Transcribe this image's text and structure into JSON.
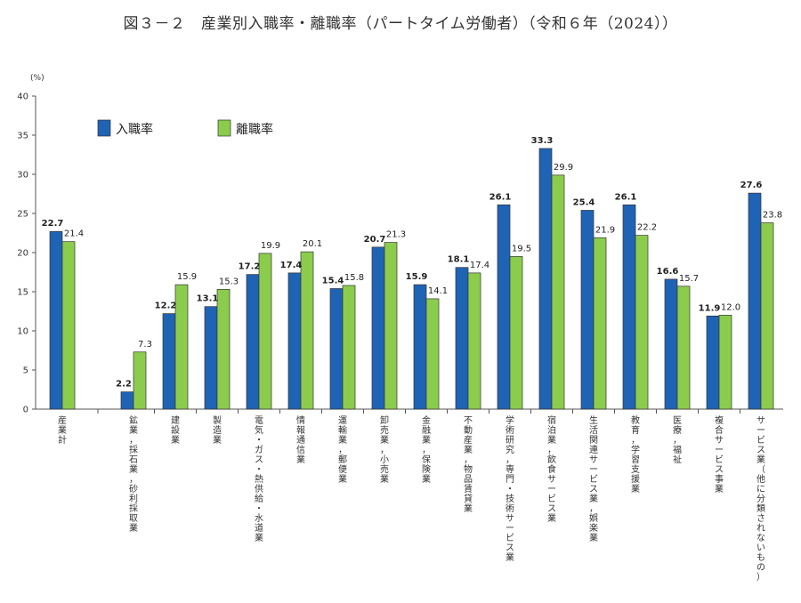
{
  "chart_data": {
    "type": "bar",
    "title": "図３－２　産業別入職率・離職率（パートタイム労働者）（令和６年（2024））",
    "ylabel": "(%)",
    "ylim": [
      0,
      40
    ],
    "yticks": [
      0,
      5,
      10,
      15,
      20,
      25,
      30,
      35,
      40
    ],
    "colors": {
      "entry": "#1f63b5",
      "exit": "#8ccc4d"
    },
    "categories": [
      "産業計",
      "鉱業，採石業，砂利採取業",
      "建設業",
      "製造業",
      "電気・ガス・熱供給・水道業",
      "情報通信業",
      "運輸業，郵便業",
      "卸売業，小売業",
      "金融業，保険業",
      "不動産業，物品賃貸業",
      "学術研究，専門・技術サービス業",
      "宿泊業，飲食サービス業",
      "生活関連サービス業，娯楽業",
      "教育，学習支援業",
      "医療，福祉",
      "複合サービス事業",
      "サービス業（他に分類されないもの）"
    ],
    "series": [
      {
        "name": "入職率",
        "values": [
          22.7,
          2.2,
          12.2,
          13.1,
          17.2,
          17.4,
          15.4,
          20.7,
          15.9,
          18.1,
          26.1,
          33.3,
          25.4,
          26.1,
          16.6,
          11.9,
          27.6
        ],
        "labels": [
          "22.7",
          "2.2",
          "12.2",
          "13.1",
          "17.2",
          "17.4",
          "15.4",
          "20.7",
          "15.9",
          "18.1",
          "26.1",
          "33.3",
          "25.4",
          "26.1",
          "16.6",
          "11.9",
          "27.6"
        ]
      },
      {
        "name": "離職率",
        "values": [
          21.4,
          7.3,
          15.9,
          15.3,
          19.9,
          20.1,
          15.8,
          21.3,
          14.1,
          17.4,
          19.5,
          29.9,
          21.9,
          22.2,
          15.7,
          12.0,
          23.8
        ],
        "labels": [
          "21.4",
          "7.3",
          "15.9",
          "15.3",
          "19.9",
          "20.1",
          "15.8",
          "21.3",
          "14.1",
          "17.4",
          "19.5",
          "29.9",
          "21.9",
          "22.2",
          "15.7",
          "12.0",
          "23.8"
        ]
      }
    ]
  }
}
